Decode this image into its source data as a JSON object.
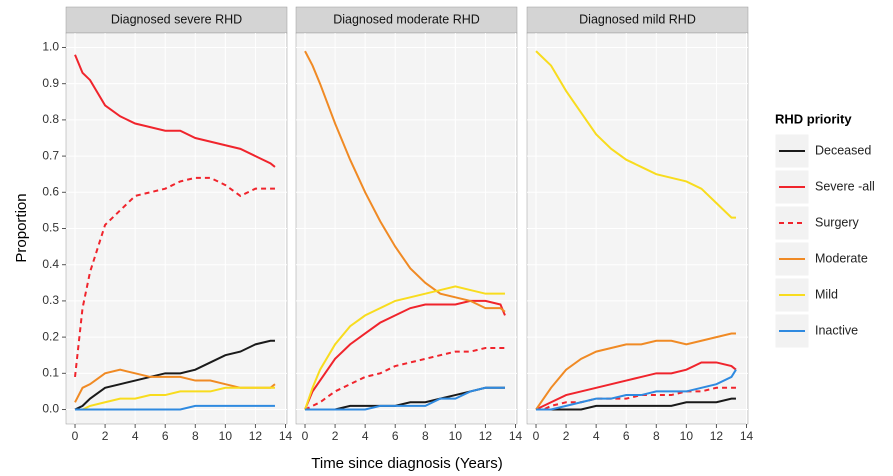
{
  "chart_data": [
    {
      "type": "line",
      "title": "Diagnosed severe RHD",
      "ylabel": "Proportion",
      "legend_title": "RHD priority",
      "grid": true,
      "x": [
        0,
        0.5,
        1,
        2,
        3,
        4,
        5,
        6,
        7,
        8,
        9,
        10,
        11,
        12,
        13,
        13.3
      ],
      "xlim": [
        -0.6,
        14.1
      ],
      "xticks": [
        0,
        2,
        4,
        6,
        8,
        10,
        12,
        14
      ],
      "ylim": [
        -0.04,
        1.04
      ],
      "yticks": [
        {
          "value": 0,
          "label": "0.0"
        },
        0.1,
        0.2,
        0.3,
        0.4,
        0.5,
        0.6,
        0.7,
        0.8,
        0.9,
        {
          "value": 1,
          "label": "1.0"
        }
      ],
      "series": [
        {
          "name": "Deceased",
          "color": "#1a1a1a",
          "values": [
            0,
            0.01,
            0.03,
            0.06,
            0.07,
            0.08,
            0.09,
            0.1,
            0.1,
            0.11,
            0.13,
            0.15,
            0.16,
            0.18,
            0.19,
            0.19
          ]
        },
        {
          "name": "Severe -all",
          "color": "#f0242c",
          "values": [
            0.98,
            0.93,
            0.91,
            0.84,
            0.81,
            0.79,
            0.78,
            0.77,
            0.77,
            0.75,
            0.74,
            0.73,
            0.72,
            0.7,
            0.68,
            0.67
          ]
        },
        {
          "name": "Surgery",
          "color": "#f0242c",
          "dashed": true,
          "values": [
            0.09,
            0.28,
            0.38,
            0.51,
            0.55,
            0.59,
            0.6,
            0.61,
            0.63,
            0.64,
            0.64,
            0.62,
            0.59,
            0.61,
            0.61,
            0.61
          ]
        },
        {
          "name": "Moderate",
          "color": "#f08a24",
          "values": [
            0.02,
            0.06,
            0.07,
            0.1,
            0.11,
            0.1,
            0.09,
            0.09,
            0.09,
            0.08,
            0.08,
            0.07,
            0.06,
            0.06,
            0.06,
            0.07
          ]
        },
        {
          "name": "Mild",
          "color": "#f8dc1e",
          "values": [
            0,
            0,
            0.01,
            0.02,
            0.03,
            0.03,
            0.04,
            0.04,
            0.05,
            0.05,
            0.05,
            0.06,
            0.06,
            0.06,
            0.06,
            0.06
          ]
        },
        {
          "name": "Inactive",
          "color": "#2f8ae0",
          "values": [
            0,
            0,
            0,
            0,
            0,
            0,
            0,
            0,
            0,
            0.01,
            0.01,
            0.01,
            0.01,
            0.01,
            0.01,
            0.01
          ]
        }
      ]
    },
    {
      "type": "line",
      "title": "Diagnosed moderate RHD",
      "xlabel": "Time since diagnosis (Years)",
      "grid": true,
      "x": [
        0,
        0.5,
        1,
        2,
        3,
        4,
        5,
        6,
        7,
        8,
        9,
        10,
        11,
        12,
        13,
        13.3
      ],
      "xlim": [
        -0.6,
        14.1
      ],
      "xticks": [
        0,
        2,
        4,
        6,
        8,
        10,
        12,
        14
      ],
      "ylim": [
        -0.04,
        1.04
      ],
      "series": [
        {
          "name": "Deceased",
          "color": "#1a1a1a",
          "values": [
            0,
            0,
            0,
            0,
            0.01,
            0.01,
            0.01,
            0.01,
            0.02,
            0.02,
            0.03,
            0.04,
            0.05,
            0.06,
            0.06,
            0.06
          ]
        },
        {
          "name": "Severe -all",
          "color": "#f0242c",
          "values": [
            0,
            0.05,
            0.08,
            0.14,
            0.18,
            0.21,
            0.24,
            0.26,
            0.28,
            0.29,
            0.29,
            0.29,
            0.3,
            0.3,
            0.29,
            0.26
          ]
        },
        {
          "name": "Surgery",
          "color": "#f0242c",
          "dashed": true,
          "values": [
            0,
            0.01,
            0.02,
            0.05,
            0.07,
            0.09,
            0.1,
            0.12,
            0.13,
            0.14,
            0.15,
            0.16,
            0.16,
            0.17,
            0.17,
            0.17
          ]
        },
        {
          "name": "Moderate",
          "color": "#f08a24",
          "values": [
            0.99,
            0.95,
            0.9,
            0.79,
            0.69,
            0.6,
            0.52,
            0.45,
            0.39,
            0.35,
            0.32,
            0.31,
            0.3,
            0.28,
            0.28,
            0.27
          ]
        },
        {
          "name": "Mild",
          "color": "#f8dc1e",
          "values": [
            0,
            0.06,
            0.11,
            0.18,
            0.23,
            0.26,
            0.28,
            0.3,
            0.31,
            0.32,
            0.33,
            0.34,
            0.33,
            0.32,
            0.32,
            0.32
          ]
        },
        {
          "name": "Inactive",
          "color": "#2f8ae0",
          "values": [
            0,
            0,
            0,
            0,
            0,
            0,
            0.01,
            0.01,
            0.01,
            0.01,
            0.03,
            0.03,
            0.05,
            0.06,
            0.06,
            0.06
          ]
        }
      ]
    },
    {
      "type": "line",
      "title": "Diagnosed mild RHD",
      "grid": true,
      "x": [
        0,
        0.5,
        1,
        2,
        3,
        4,
        5,
        6,
        7,
        8,
        9,
        10,
        11,
        12,
        13,
        13.3
      ],
      "xlim": [
        -0.6,
        14.1
      ],
      "xticks": [
        0,
        2,
        4,
        6,
        8,
        10,
        12,
        14
      ],
      "ylim": [
        -0.04,
        1.04
      ],
      "series": [
        {
          "name": "Deceased",
          "color": "#1a1a1a",
          "values": [
            0,
            0,
            0,
            0,
            0,
            0.01,
            0.01,
            0.01,
            0.01,
            0.01,
            0.01,
            0.02,
            0.02,
            0.02,
            0.03,
            0.03
          ]
        },
        {
          "name": "Severe -all",
          "color": "#f0242c",
          "values": [
            0,
            0.01,
            0.02,
            0.04,
            0.05,
            0.06,
            0.07,
            0.08,
            0.09,
            0.1,
            0.1,
            0.11,
            0.13,
            0.13,
            0.12,
            0.11
          ]
        },
        {
          "name": "Surgery",
          "color": "#f0242c",
          "dashed": true,
          "values": [
            0,
            0,
            0.01,
            0.02,
            0.02,
            0.03,
            0.03,
            0.03,
            0.04,
            0.04,
            0.04,
            0.05,
            0.05,
            0.06,
            0.06,
            0.06
          ]
        },
        {
          "name": "Moderate",
          "color": "#f08a24",
          "values": [
            0,
            0.03,
            0.06,
            0.11,
            0.14,
            0.16,
            0.17,
            0.18,
            0.18,
            0.19,
            0.19,
            0.18,
            0.19,
            0.2,
            0.21,
            0.21
          ]
        },
        {
          "name": "Mild",
          "color": "#f8dc1e",
          "values": [
            0.99,
            0.97,
            0.95,
            0.88,
            0.82,
            0.76,
            0.72,
            0.69,
            0.67,
            0.65,
            0.64,
            0.63,
            0.61,
            0.57,
            0.53,
            0.53
          ]
        },
        {
          "name": "Inactive",
          "color": "#2f8ae0",
          "values": [
            0,
            0,
            0,
            0.01,
            0.02,
            0.03,
            0.03,
            0.04,
            0.04,
            0.05,
            0.05,
            0.05,
            0.06,
            0.07,
            0.09,
            0.11
          ]
        }
      ]
    }
  ]
}
